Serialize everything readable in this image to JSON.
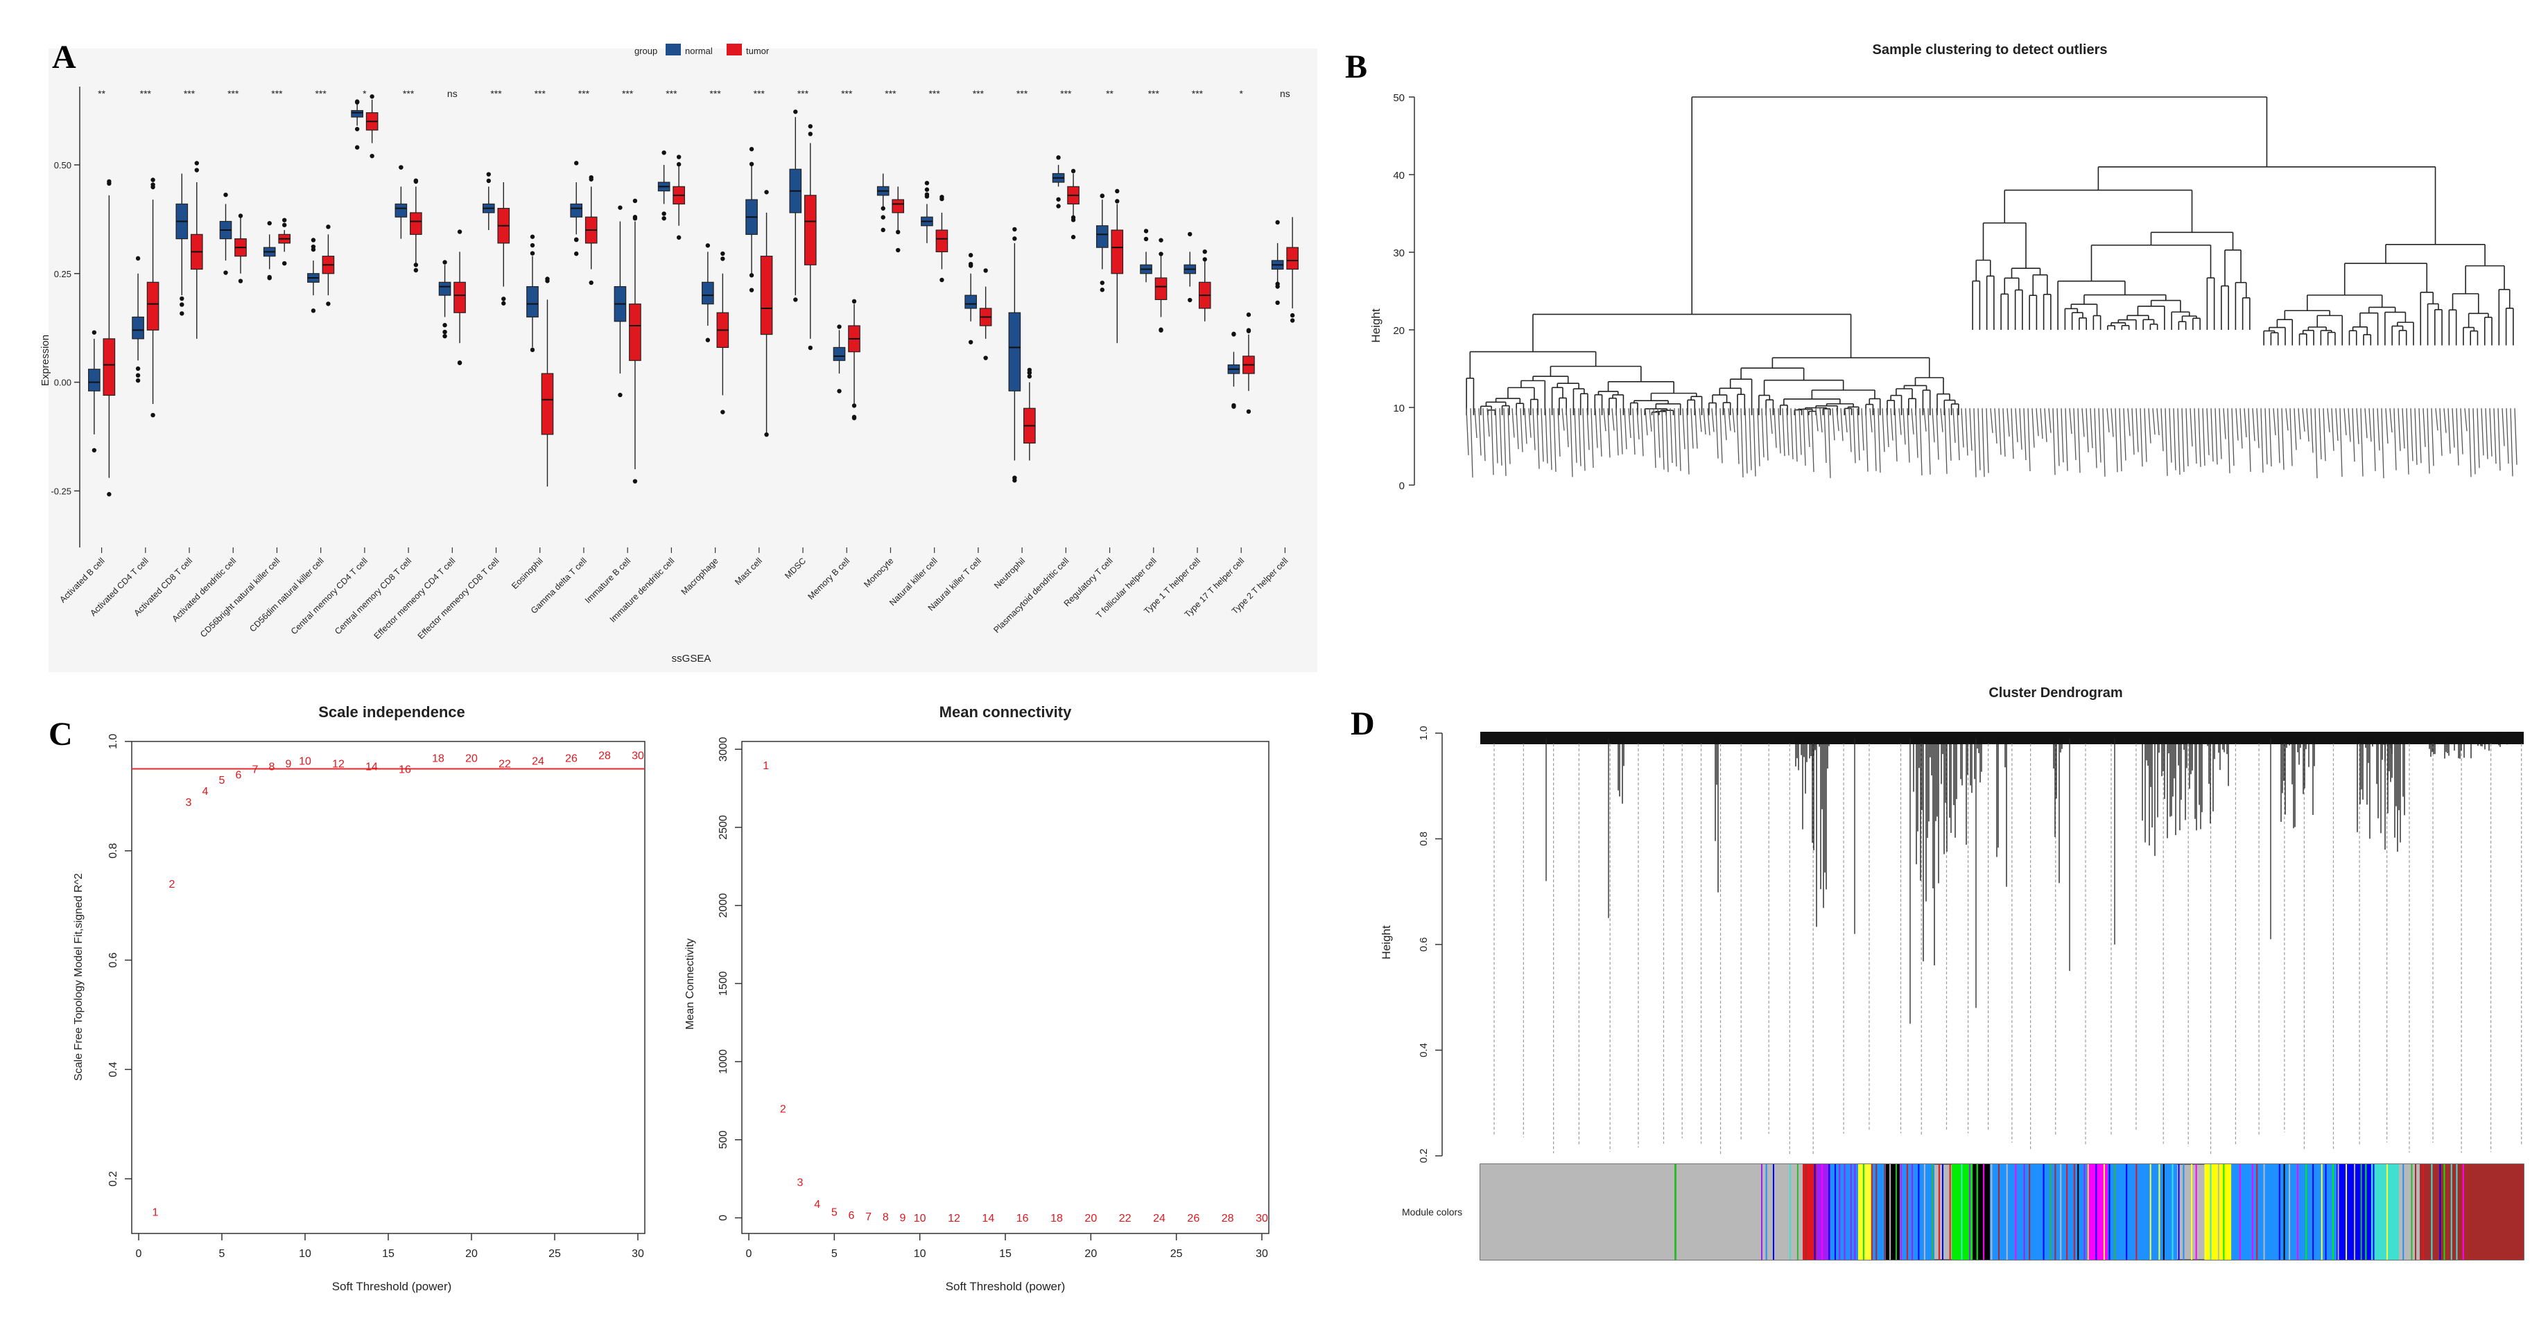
{
  "colors": {
    "normal": "#1f4e8c",
    "tumor": "#e0171e",
    "threshold_line": "#e8262c",
    "point_text": "#e0171e",
    "grid_gray": "#9a9a9a"
  },
  "panels": [
    "A",
    "B",
    "C",
    "D"
  ],
  "chart_data": [
    {
      "panel": "A",
      "type": "box",
      "title": "",
      "xlabel": "ssGSEA",
      "ylabel": "Expression",
      "ylim": [
        -0.38,
        0.68
      ],
      "yticks": [
        -0.25,
        0,
        0.25,
        0.5
      ],
      "ytick_labels": [
        "-0.25",
        "0.00",
        "0.25",
        "0.50"
      ],
      "legend": {
        "title": "group",
        "entries": [
          "normal",
          "tumor"
        ],
        "placement": "top-center"
      },
      "categories": [
        "Activated B cell",
        "Activated CD4 T cell",
        "Activated CD8 T cell",
        "Activated dendritic cell",
        "CD56bright natural killer cell",
        "CD56dim natural killer cell",
        "Central memory CD4 T cell",
        "Central memory CD8 T cell",
        "Effector memeory CD4 T cell",
        "Effector memeory CD8 T cell",
        "Eosinophil",
        "Gamma delta T cell",
        "Immature B cell",
        "Immature dendritic cell",
        "Macrophage",
        "Mast cell",
        "MDSC",
        "Memory B cell",
        "Monocyte",
        "Natural killer cell",
        "Natural killer T cell",
        "Neutrophil",
        "Plasmacytoid dendritic cell",
        "Regulatory T cell",
        "T follicular helper cell",
        "Type 1 T helper cell",
        "Type 17 T helper cell",
        "Type 2 T helper cell"
      ],
      "significance": [
        "**",
        "***",
        "***",
        "***",
        "***",
        "***",
        "*",
        "***",
        "ns",
        "***",
        "***",
        "***",
        "***",
        "***",
        "***",
        "***",
        "***",
        "***",
        "***",
        "***",
        "***",
        "***",
        "***",
        "**",
        "***",
        "***",
        "*",
        "ns"
      ],
      "series": [
        {
          "name": "normal",
          "box": [
            [
              -0.12,
              -0.02,
              0.0,
              0.03,
              0.1
            ],
            [
              0.05,
              0.1,
              0.12,
              0.15,
              0.25
            ],
            [
              0.2,
              0.33,
              0.37,
              0.41,
              0.48
            ],
            [
              0.28,
              0.33,
              0.35,
              0.37,
              0.41
            ],
            [
              0.26,
              0.29,
              0.3,
              0.31,
              0.34
            ],
            [
              0.2,
              0.23,
              0.24,
              0.25,
              0.28
            ],
            [
              0.59,
              0.61,
              0.62,
              0.625,
              0.64
            ],
            [
              0.33,
              0.38,
              0.4,
              0.41,
              0.45
            ],
            [
              0.15,
              0.2,
              0.22,
              0.23,
              0.27
            ],
            [
              0.35,
              0.39,
              0.4,
              0.41,
              0.45
            ],
            [
              0.08,
              0.15,
              0.18,
              0.22,
              0.29
            ],
            [
              0.34,
              0.38,
              0.4,
              0.41,
              0.46
            ],
            [
              0.02,
              0.14,
              0.18,
              0.22,
              0.37
            ],
            [
              0.41,
              0.44,
              0.45,
              0.46,
              0.5
            ],
            [
              0.13,
              0.18,
              0.2,
              0.23,
              0.3
            ],
            [
              0.25,
              0.34,
              0.38,
              0.42,
              0.5
            ],
            [
              0.2,
              0.39,
              0.44,
              0.49,
              0.61
            ],
            [
              0.02,
              0.05,
              0.06,
              0.08,
              0.12
            ],
            [
              0.4,
              0.43,
              0.44,
              0.45,
              0.48
            ],
            [
              0.32,
              0.36,
              0.37,
              0.38,
              0.41
            ],
            [
              0.14,
              0.17,
              0.18,
              0.2,
              0.25
            ],
            [
              -0.18,
              -0.02,
              0.08,
              0.16,
              0.32
            ],
            [
              0.45,
              0.46,
              0.47,
              0.48,
              0.5
            ],
            [
              0.26,
              0.31,
              0.34,
              0.36,
              0.42
            ],
            [
              0.23,
              0.25,
              0.26,
              0.27,
              0.3
            ],
            [
              0.22,
              0.25,
              0.26,
              0.27,
              0.3
            ],
            [
              -0.01,
              0.02,
              0.03,
              0.04,
              0.07
            ],
            [
              0.23,
              0.26,
              0.27,
              0.28,
              0.32
            ]
          ]
        },
        {
          "name": "tumor",
          "box": [
            [
              -0.22,
              -0.03,
              0.04,
              0.1,
              0.43
            ],
            [
              -0.05,
              0.12,
              0.18,
              0.23,
              0.42
            ],
            [
              0.1,
              0.26,
              0.3,
              0.34,
              0.46
            ],
            [
              0.25,
              0.29,
              0.31,
              0.33,
              0.38
            ],
            [
              0.3,
              0.32,
              0.33,
              0.34,
              0.35
            ],
            [
              0.2,
              0.25,
              0.27,
              0.29,
              0.34
            ],
            [
              0.55,
              0.58,
              0.6,
              0.62,
              0.65
            ],
            [
              0.27,
              0.34,
              0.37,
              0.39,
              0.45
            ],
            [
              0.09,
              0.16,
              0.2,
              0.23,
              0.3
            ],
            [
              0.22,
              0.32,
              0.36,
              0.4,
              0.46
            ],
            [
              -0.24,
              -0.12,
              -0.04,
              0.02,
              0.19
            ],
            [
              0.26,
              0.32,
              0.35,
              0.38,
              0.45
            ],
            [
              -0.2,
              0.05,
              0.13,
              0.18,
              0.37
            ],
            [
              0.36,
              0.41,
              0.43,
              0.45,
              0.5
            ],
            [
              -0.03,
              0.08,
              0.12,
              0.16,
              0.25
            ],
            [
              -0.12,
              0.11,
              0.17,
              0.29,
              0.39
            ],
            [
              0.1,
              0.27,
              0.37,
              0.43,
              0.55
            ],
            [
              -0.05,
              0.07,
              0.1,
              0.13,
              0.18
            ],
            [
              0.35,
              0.39,
              0.41,
              0.42,
              0.45
            ],
            [
              0.26,
              0.3,
              0.33,
              0.35,
              0.39
            ],
            [
              0.1,
              0.13,
              0.15,
              0.17,
              0.22
            ],
            [
              -0.18,
              -0.14,
              -0.1,
              -0.06,
              0.0
            ],
            [
              0.38,
              0.41,
              0.43,
              0.45,
              0.48
            ],
            [
              0.09,
              0.25,
              0.31,
              0.35,
              0.41
            ],
            [
              0.15,
              0.19,
              0.22,
              0.24,
              0.29
            ],
            [
              0.14,
              0.17,
              0.2,
              0.23,
              0.28
            ],
            [
              -0.02,
              0.02,
              0.04,
              0.06,
              0.11
            ],
            [
              0.17,
              0.26,
              0.28,
              0.31,
              0.38
            ]
          ]
        }
      ]
    },
    {
      "panel": "B",
      "type": "dendrogram",
      "title": "Sample clustering to detect outliers",
      "ylabel": "Height",
      "ylim": [
        0,
        50
      ],
      "yticks": [
        0,
        10,
        20,
        30,
        40,
        50
      ]
    },
    {
      "panel": "C1",
      "type": "scatter",
      "title": "Scale independence",
      "xlabel": "Soft Threshold (power)",
      "ylabel": "Scale Free Topology Model Fit,signed R^2",
      "xlim": [
        0,
        30
      ],
      "ylim": [
        0.1,
        1.0
      ],
      "xticks": [
        0,
        5,
        10,
        15,
        20,
        25,
        30
      ],
      "yticks": [
        0.2,
        0.4,
        0.6,
        0.8,
        1.0
      ],
      "ytick_labels": [
        "0.2",
        "0.4",
        "0.6",
        "0.8",
        "1.0"
      ],
      "hline": 0.95,
      "x": [
        1,
        2,
        3,
        4,
        5,
        6,
        7,
        8,
        9,
        10,
        12,
        14,
        16,
        18,
        20,
        22,
        24,
        26,
        28,
        30
      ],
      "y": [
        0.14,
        0.74,
        0.89,
        0.91,
        0.93,
        0.94,
        0.95,
        0.955,
        0.96,
        0.965,
        0.96,
        0.955,
        0.95,
        0.97,
        0.97,
        0.96,
        0.965,
        0.97,
        0.975,
        0.975
      ]
    },
    {
      "panel": "C2",
      "type": "scatter",
      "title": "Mean connectivity",
      "xlabel": "Soft Threshold (power)",
      "ylabel": "Mean Connectivity",
      "xlim": [
        0,
        30
      ],
      "ylim": [
        -100,
        3050
      ],
      "xticks": [
        0,
        5,
        10,
        15,
        20,
        25,
        30
      ],
      "yticks": [
        0,
        500,
        1000,
        1500,
        2000,
        2500,
        3000
      ],
      "x": [
        1,
        2,
        3,
        4,
        5,
        6,
        7,
        8,
        9,
        10,
        12,
        14,
        16,
        18,
        20,
        22,
        24,
        26,
        28,
        30
      ],
      "y": [
        2900,
        700,
        230,
        90,
        40,
        20,
        12,
        8,
        5,
        3,
        2,
        1,
        1,
        1,
        1,
        1,
        1,
        1,
        1,
        1
      ]
    },
    {
      "panel": "D",
      "type": "dendrogram",
      "title": "Cluster Dendrogram",
      "ylabel": "Height",
      "ylim": [
        0.2,
        1.0
      ],
      "yticks": [
        0.2,
        0.4,
        0.6,
        0.8,
        1.0
      ],
      "ytick_labels": [
        "0.2",
        "0.4",
        "0.6",
        "0.8",
        "1.0"
      ],
      "module_bar_label": "Module colors",
      "module_colors": [
        "#b8b8b8",
        "#2db82d",
        "#b8b8b8",
        "#e0171e",
        "#a020f0",
        "#ffff33",
        "#00ee00",
        "#000000",
        "#1e90ff",
        "#ff00ff",
        "#ffff00",
        "#0000ff",
        "#40e0d0",
        "#a52a2a"
      ]
    }
  ]
}
